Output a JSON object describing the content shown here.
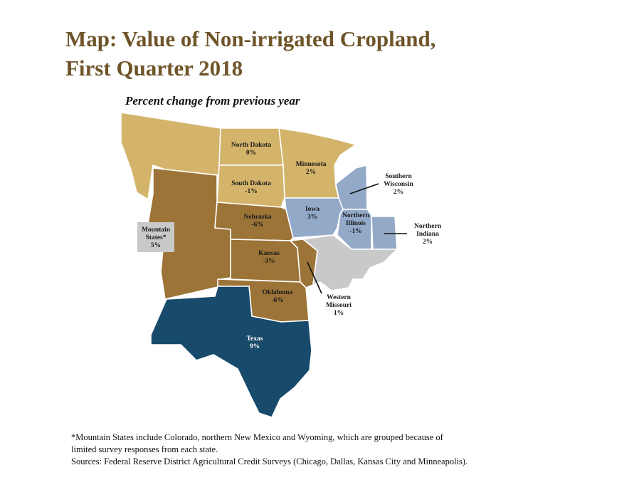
{
  "title_line1": "Map: Value of Non-irrigated Cropland,",
  "title_line2": "First Quarter 2018",
  "subtitle": "Percent change from previous year",
  "colors": {
    "tan": "#d4b36a",
    "brown": "#9c7437",
    "gray": "#c9c9c9",
    "steel": "#93a9c8",
    "navy": "#184a6c"
  },
  "regions": [
    {
      "id": "montana",
      "name": "",
      "value": ""
    },
    {
      "id": "north_dakota",
      "name": "North Dakota",
      "value": "0%"
    },
    {
      "id": "south_dakota",
      "name": "South Dakota",
      "value": "-1%"
    },
    {
      "id": "minnesota",
      "name": "Minnesota",
      "value": "2%"
    },
    {
      "id": "mountain_states",
      "name": "Mountain States*",
      "value": "5%"
    },
    {
      "id": "nebraska",
      "name": "Nebraska",
      "value": "-6%"
    },
    {
      "id": "kansas",
      "name": "Kansas",
      "value": "-3%"
    },
    {
      "id": "oklahoma",
      "name": "Oklahoma",
      "value": "-6%"
    },
    {
      "id": "texas",
      "name": "Texas",
      "value": "9%"
    },
    {
      "id": "iowa",
      "name": "Iowa",
      "value": "3%"
    },
    {
      "id": "southern_wisconsin",
      "name": "Southern Wisconsin",
      "value": "2%"
    },
    {
      "id": "northern_illinois",
      "name": "Northern Illinois",
      "value": "-1%"
    },
    {
      "id": "northern_indiana",
      "name": "Northern Indiana",
      "value": "2%"
    },
    {
      "id": "western_missouri",
      "name": "Western Missouri",
      "value": "1%"
    }
  ],
  "labels": {
    "north_dakota": [
      "North Dakota",
      "0%"
    ],
    "south_dakota": [
      "South Dakota",
      "-1%"
    ],
    "minnesota": [
      "Minnesota",
      "2%"
    ],
    "mountain_states": [
      "Mountain",
      "States*",
      "5%"
    ],
    "nebraska": [
      "Nebraska",
      "-6%"
    ],
    "kansas": [
      "Kansas",
      "-3%"
    ],
    "oklahoma": [
      "Oklahoma",
      "-6%"
    ],
    "texas": [
      "Texas",
      "9%"
    ],
    "iowa": [
      "Iowa",
      "3%"
    ],
    "southern_wisconsin": [
      "Southern",
      "Wisconsin",
      "2%"
    ],
    "northern_illinois": [
      "Northern",
      "Illinois",
      "-1%"
    ],
    "northern_indiana": [
      "Northern",
      "Indiana",
      "2%"
    ],
    "western_missouri": [
      "Western",
      "Missouri",
      "1%"
    ]
  },
  "footnote": {
    "line1": "*Mountain States include Colorado, northern New Mexico and Wyoming, which are grouped because of",
    "line2": "limited survey responses from each state.",
    "line3": "Sources:  Federal Reserve District Agricultural Credit Surveys (Chicago, Dallas, Kansas City and Minneapolis)."
  }
}
